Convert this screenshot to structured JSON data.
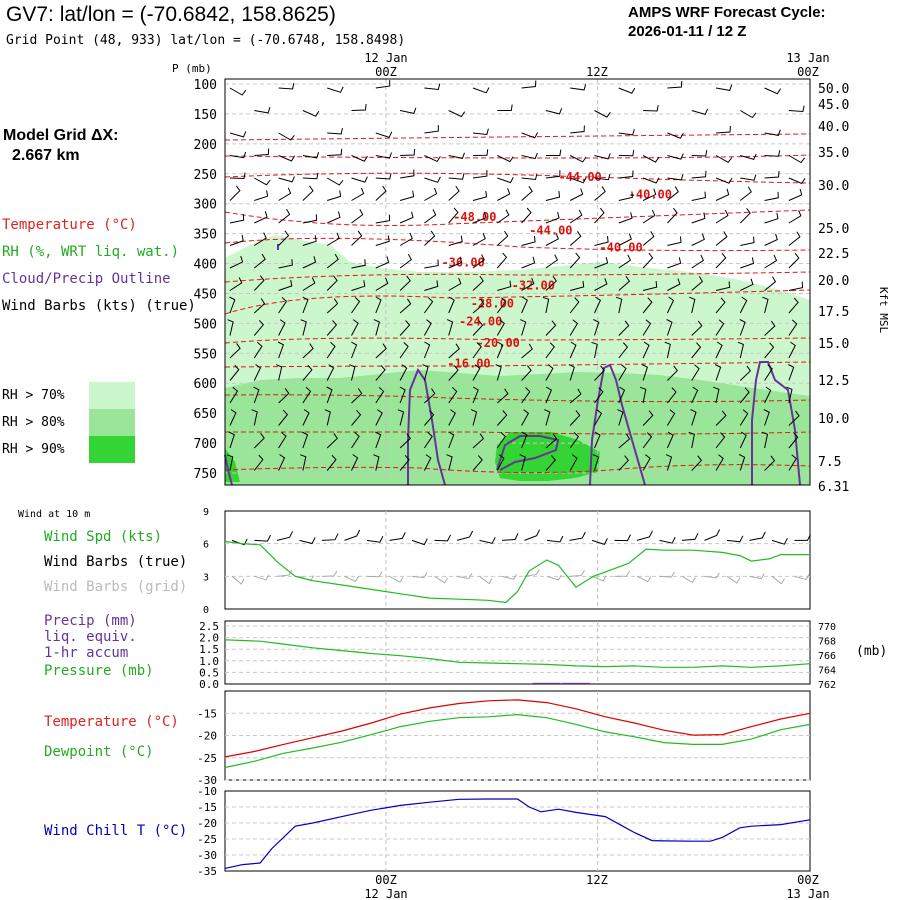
{
  "header": {
    "title": "GV7:  lat/lon = (-70.6842, 158.8625)",
    "grid_point": "Grid Point (48, 933) lat/lon = (-70.6748, 158.8498)",
    "cycle_label": "AMPS WRF Forecast Cycle:",
    "cycle_value": "2026-01-11 / 12  Z"
  },
  "model_grid": {
    "label": "Model Grid ΔX:",
    "value": "2.667 km"
  },
  "legend": {
    "temperature": "Temperature (°C)",
    "rh": "RH (%, WRT liq. wat.)",
    "cloud": "Cloud/Precip Outline",
    "wind": "Wind Barbs (kts) (true)",
    "rh70": "RH > 70%",
    "rh80": "RH > 80%",
    "rh90": "RH > 90%",
    "rh70_color": "#ccf7cc",
    "rh80_color": "#99e699",
    "rh90_color": "#33d433"
  },
  "time_axis": {
    "top_date_1": "12 Jan",
    "top_time_1": "00Z",
    "top_time_2": "12Z",
    "top_date_3": "13 Jan",
    "top_time_3": "00Z",
    "bottom_time_1": "00Z",
    "bottom_date_1": "12 Jan",
    "bottom_time_2": "12Z",
    "bottom_time_3": "00Z",
    "bottom_date_3": "13 Jan"
  },
  "colors": {
    "temperature": "#dd0000",
    "dewpoint": "#22bb22",
    "wind_chill": "#0000bb",
    "cloud": "#663399",
    "grid_wind": "#aaaaaa"
  },
  "chart_data": [
    {
      "type": "heatmap",
      "name": "cross-section",
      "ylabel_left": "P (mb)",
      "ylabel_right": "Kft MSL",
      "pressure_ticks": [
        "100",
        "150",
        "200",
        "250",
        "300",
        "350",
        "400",
        "450",
        "500",
        "550",
        "600",
        "650",
        "700",
        "750"
      ],
      "height_ticks": [
        "50.0",
        "45.0",
        "40.0",
        "35.0",
        "30.0",
        "25.0",
        "22.5",
        "20.0",
        "17.5",
        "15.0",
        "12.5",
        "10.0",
        "7.5",
        "6.31"
      ],
      "temperature_labels": [
        {
          "text": "-44.00",
          "t": 0.57,
          "p": 255
        },
        {
          "text": "-40.00",
          "t": 0.69,
          "p": 285
        },
        {
          "text": "-48.00",
          "t": 0.39,
          "p": 322
        },
        {
          "text": "-44.00",
          "t": 0.52,
          "p": 345
        },
        {
          "text": "-40.00",
          "t": 0.64,
          "p": 373
        },
        {
          "text": "-36.00",
          "t": 0.37,
          "p": 398
        },
        {
          "text": "-32.00",
          "t": 0.49,
          "p": 437
        },
        {
          "text": "-28.00",
          "t": 0.42,
          "p": 467
        },
        {
          "text": "-24.00",
          "t": 0.4,
          "p": 497
        },
        {
          "text": "-20.00",
          "t": 0.43,
          "p": 533
        },
        {
          "text": "-16.00",
          "t": 0.38,
          "p": 567
        }
      ]
    },
    {
      "type": "line",
      "name": "wind-10m",
      "title": "Wind at 10 m",
      "label_speed": "Wind Spd (kts)",
      "label_barbs_true": "Wind Barbs (true)",
      "label_barbs_grid": "Wind Barbs (grid)",
      "y_ticks": [
        "9",
        "6",
        "3",
        "0"
      ],
      "ylim": [
        0,
        9
      ],
      "x": [
        0,
        0.03,
        0.06,
        0.09,
        0.12,
        0.15,
        0.2,
        0.25,
        0.3,
        0.35,
        0.4,
        0.45,
        0.48,
        0.5,
        0.52,
        0.55,
        0.57,
        0.6,
        0.63,
        0.66,
        0.69,
        0.72,
        0.75,
        0.8,
        0.85,
        0.88,
        0.9,
        0.93,
        0.95,
        1.0
      ],
      "speed": [
        6.2,
        6.0,
        5.9,
        4.3,
        3.0,
        2.6,
        2.2,
        1.8,
        1.4,
        1.0,
        0.9,
        0.8,
        0.6,
        1.6,
        3.5,
        4.5,
        4.0,
        2.0,
        3.0,
        3.6,
        4.2,
        5.5,
        5.4,
        5.4,
        5.2,
        4.9,
        4.4,
        4.6,
        5.0,
        5.0
      ]
    },
    {
      "type": "line",
      "name": "precip-pressure",
      "label_precip": "Precip (mm)",
      "label_liq": "liq. equiv.",
      "label_accum": "1-hr accum",
      "label_pressure": "Pressure (mb)",
      "label_mb": "(mb)",
      "left_ticks": [
        "2.5",
        "2.0",
        "1.5",
        "1.0",
        "0.5",
        "0.0"
      ],
      "right_ticks": [
        "770",
        "768",
        "766",
        "764",
        "762"
      ],
      "left_lim": [
        0,
        2.5
      ],
      "right_lim": [
        762,
        770
      ],
      "x": [
        0,
        0.03,
        0.06,
        0.1,
        0.15,
        0.2,
        0.25,
        0.3,
        0.35,
        0.4,
        0.45,
        0.5,
        0.55,
        0.6,
        0.65,
        0.7,
        0.75,
        0.8,
        0.85,
        0.9,
        0.95,
        1.0
      ],
      "pressure": [
        768.1,
        768.0,
        767.9,
        767.5,
        767.0,
        766.6,
        766.2,
        765.9,
        765.5,
        765.0,
        764.9,
        764.8,
        764.7,
        764.5,
        764.4,
        764.5,
        764.3,
        764.3,
        764.5,
        764.3,
        764.5,
        764.8
      ],
      "precip": [
        0,
        0,
        0,
        0,
        0,
        0,
        0,
        0,
        0,
        0,
        0,
        0,
        0.05,
        0.05,
        0,
        0,
        0,
        0,
        0,
        0,
        0,
        0
      ]
    },
    {
      "type": "line",
      "name": "temperature-dewpoint",
      "label_temp": "Temperature (°C)",
      "label_dew": "Dewpoint (°C)",
      "y_ticks": [
        "-15",
        "-20",
        "-25",
        "-30"
      ],
      "ylim": [
        -30,
        -10
      ],
      "x": [
        0,
        0.05,
        0.1,
        0.15,
        0.2,
        0.25,
        0.3,
        0.35,
        0.4,
        0.45,
        0.5,
        0.55,
        0.6,
        0.65,
        0.7,
        0.75,
        0.8,
        0.85,
        0.9,
        0.95,
        1.0
      ],
      "temperature": [
        -24.8,
        -23.6,
        -22.0,
        -20.5,
        -19.0,
        -17.2,
        -15.2,
        -13.8,
        -12.8,
        -12.2,
        -12.0,
        -12.6,
        -14.0,
        -15.8,
        -17.2,
        -18.8,
        -19.9,
        -19.8,
        -18.0,
        -16.3,
        -15.0
      ],
      "dewpoint": [
        -27.2,
        -25.8,
        -24.0,
        -22.8,
        -21.5,
        -19.8,
        -18.0,
        -16.8,
        -16.0,
        -15.8,
        -15.3,
        -16.0,
        -17.5,
        -19.2,
        -20.3,
        -21.6,
        -22.0,
        -22.0,
        -20.8,
        -18.7,
        -17.5
      ]
    },
    {
      "type": "line",
      "name": "wind-chill",
      "label": "Wind Chill T (°C)",
      "y_ticks": [
        "-10",
        "-15",
        "-20",
        "-25",
        "-30",
        "-35"
      ],
      "ylim": [
        -35,
        -10
      ],
      "x": [
        0,
        0.03,
        0.06,
        0.08,
        0.12,
        0.15,
        0.2,
        0.25,
        0.3,
        0.35,
        0.4,
        0.45,
        0.5,
        0.52,
        0.54,
        0.57,
        0.6,
        0.65,
        0.68,
        0.7,
        0.73,
        0.75,
        0.8,
        0.83,
        0.85,
        0.88,
        0.9,
        0.95,
        1.0
      ],
      "windchill": [
        -34.2,
        -33.0,
        -32.5,
        -28.0,
        -21.0,
        -20.0,
        -18.0,
        -16.0,
        -14.5,
        -13.5,
        -12.6,
        -12.5,
        -12.5,
        -15.0,
        -16.5,
        -15.7,
        -16.7,
        -18.0,
        -21.0,
        -23.0,
        -25.5,
        -25.6,
        -25.7,
        -25.7,
        -24.5,
        -21.5,
        -21.0,
        -20.5,
        -19.0
      ]
    }
  ]
}
